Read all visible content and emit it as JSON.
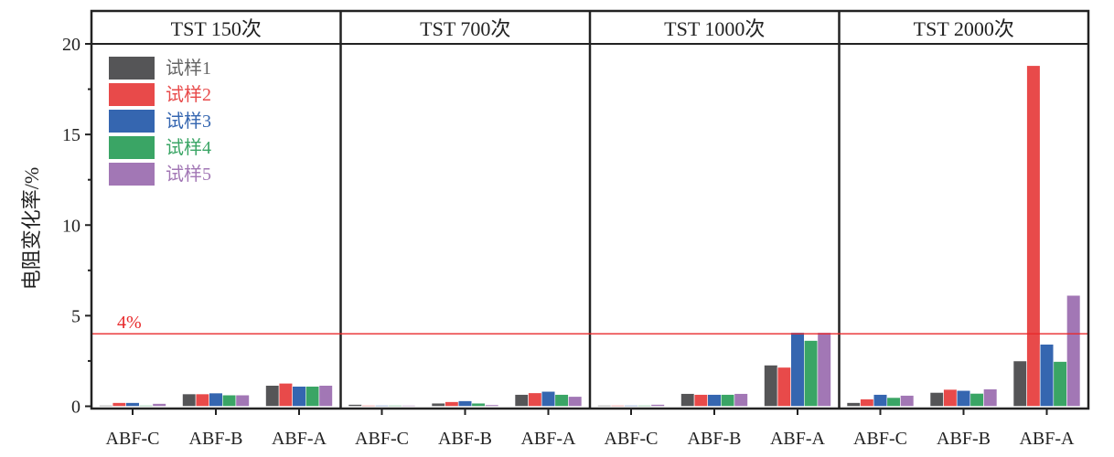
{
  "chart_data": {
    "type": "bar",
    "ylabel": "电阻变化率/%",
    "ylim": [
      0,
      20
    ],
    "yticks": [
      "0",
      "5",
      "10",
      "15",
      "20"
    ],
    "grid": false,
    "legend_placement": "top-left",
    "categories": [
      "ABF-C",
      "ABF-B",
      "ABF-A"
    ],
    "reference_line": {
      "value": 4,
      "label": "4%",
      "color": "#e8292b"
    },
    "colors": [
      "#555557",
      "#e84a4a",
      "#3566b0",
      "#3aa565",
      "#a277b5"
    ],
    "series_names": [
      "试样1",
      "试样2",
      "试样3",
      "试样4",
      "试样5"
    ],
    "panels": [
      {
        "title": "TST 150次",
        "values": [
          [
            0.05,
            0.2,
            0.2,
            0.05,
            0.15
          ],
          [
            0.68,
            0.68,
            0.73,
            0.62,
            0.62
          ],
          [
            1.15,
            1.27,
            1.1,
            1.1,
            1.15
          ]
        ]
      },
      {
        "title": "TST 700次",
        "values": [
          [
            0.1,
            0.05,
            0.05,
            0.05,
            0.05
          ],
          [
            0.17,
            0.25,
            0.3,
            0.17,
            0.08
          ],
          [
            0.65,
            0.74,
            0.82,
            0.65,
            0.54
          ]
        ]
      },
      {
        "title": "TST 1000次",
        "values": [
          [
            0.05,
            0.05,
            0.05,
            0.05,
            0.1
          ],
          [
            0.7,
            0.65,
            0.65,
            0.65,
            0.7
          ],
          [
            2.27,
            2.15,
            4.07,
            3.63,
            4.07
          ]
        ]
      },
      {
        "title": "TST 2000次",
        "values": [
          [
            0.2,
            0.4,
            0.65,
            0.48,
            0.6
          ],
          [
            0.76,
            0.93,
            0.87,
            0.71,
            0.95
          ],
          [
            2.5,
            18.8,
            3.42,
            2.47,
            6.12
          ]
        ]
      }
    ]
  }
}
